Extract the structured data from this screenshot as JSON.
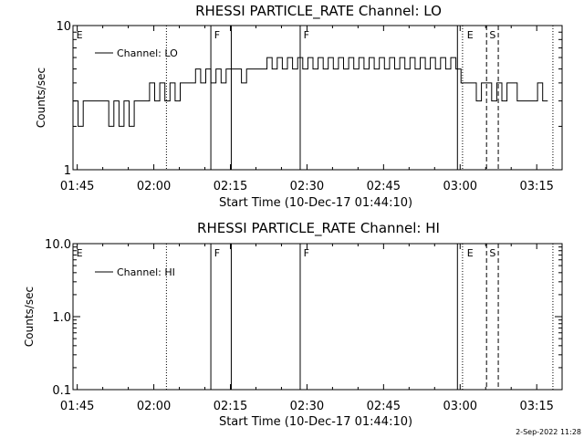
{
  "footer": {
    "date_stamp": "2-Sep-2022 11:28"
  },
  "chart_data": [
    {
      "type": "line",
      "title": "RHESSI PARTICLE_RATE Channel: LO",
      "xlabel": "Start Time (10-Dec-17 01:44:10)",
      "ylabel": "Counts/sec",
      "yscale": "log",
      "ylim": [
        1,
        10
      ],
      "xlim_minutes_after_01_44_10": [
        0,
        95.8
      ],
      "x_tick_labels": [
        "01:45",
        "02:00",
        "02:15",
        "02:30",
        "02:45",
        "03:00",
        "03:15"
      ],
      "y_tick_labels": [
        "1",
        "10"
      ],
      "legend": {
        "entry": "Channel: LO",
        "placement": "top-left"
      },
      "flag_labels": [
        "E",
        "F",
        "F",
        "E",
        "S"
      ],
      "series": [
        {
          "name": "Channel: LO",
          "x": [
            0.0,
            1.0,
            2.0,
            3.0,
            4.0,
            5.0,
            6.0,
            7.0,
            8.0,
            9.0,
            10.0,
            11.0,
            12.0,
            13.0,
            14.0,
            15.0,
            16.0,
            17.0,
            18.0,
            19.0,
            20.0,
            21.0,
            22.0,
            23.0,
            24.0,
            25.0,
            26.0,
            27.0,
            28.0,
            29.0,
            30.0,
            31.0,
            32.0,
            33.0,
            34.0,
            35.0,
            36.0,
            37.0,
            38.0,
            39.0,
            40.0,
            41.0,
            42.0,
            43.0,
            44.0,
            45.0,
            46.0,
            47.0,
            48.0,
            49.0,
            50.0,
            51.0,
            52.0,
            53.0,
            54.0,
            55.0,
            56.0,
            57.0,
            58.0,
            59.0,
            60.0,
            61.0,
            62.0,
            63.0,
            64.0,
            65.0,
            66.0,
            67.0,
            68.0,
            69.0,
            70.0,
            71.0,
            72.0,
            73.0,
            74.0,
            75.0,
            76.0,
            77.0,
            78.0,
            79.0,
            80.0,
            81.0,
            82.0,
            83.0,
            84.0,
            85.0,
            86.0,
            87.0,
            88.0,
            89.0,
            90.0,
            91.0,
            92.0,
            93.0
          ],
          "y": [
            3,
            2,
            3,
            3,
            3,
            3,
            3,
            2,
            3,
            2,
            3,
            2,
            3,
            3,
            3,
            4,
            3,
            4,
            3,
            4,
            3,
            4,
            4,
            4,
            5,
            4,
            5,
            4,
            5,
            4,
            5,
            5,
            5,
            4,
            5,
            5,
            5,
            5,
            6,
            5,
            6,
            5,
            6,
            5,
            6,
            5,
            6,
            5,
            6,
            5,
            6,
            5,
            6,
            5,
            6,
            5,
            6,
            5,
            6,
            5,
            6,
            5,
            6,
            5,
            6,
            5,
            6,
            5,
            6,
            5,
            6,
            5,
            6,
            5,
            6,
            5,
            4,
            4,
            4,
            3,
            4,
            4,
            3,
            4,
            3,
            4,
            4,
            3,
            3,
            3,
            3,
            4,
            3,
            3
          ]
        }
      ]
    },
    {
      "type": "line",
      "title": "RHESSI PARTICLE_RATE Channel: HI",
      "xlabel": "Start Time (10-Dec-17 01:44:10)",
      "ylabel": "Counts/sec",
      "yscale": "log",
      "ylim": [
        0.1,
        10.0
      ],
      "xlim_minutes_after_01_44_10": [
        0,
        95.8
      ],
      "x_tick_labels": [
        "01:45",
        "02:00",
        "02:15",
        "02:30",
        "02:45",
        "03:00",
        "03:15"
      ],
      "y_tick_labels": [
        "0.1",
        "1.0",
        "10.0"
      ],
      "legend": {
        "entry": "Channel: HI",
        "placement": "top-left"
      },
      "flag_labels": [
        "E",
        "F",
        "F",
        "E",
        "S"
      ],
      "series": [
        {
          "name": "Channel: HI",
          "x": [],
          "y": []
        }
      ]
    }
  ]
}
